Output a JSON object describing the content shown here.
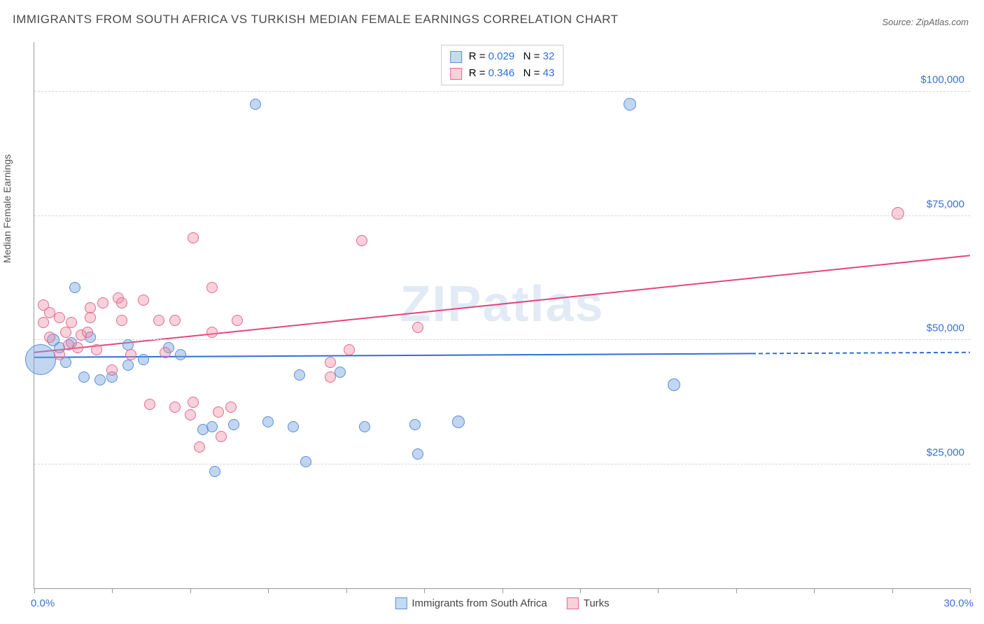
{
  "title": "IMMIGRANTS FROM SOUTH AFRICA VS TURKISH MEDIAN FEMALE EARNINGS CORRELATION CHART",
  "source": "Source: ZipAtlas.com",
  "watermark": "ZIPatlas",
  "y_axis_label": "Median Female Earnings",
  "x_min_label": "0.0%",
  "x_max_label": "30.0%",
  "chart": {
    "type": "scatter",
    "xlim": [
      0,
      30
    ],
    "ylim": [
      0,
      110000
    ],
    "y_gridlines": [
      25000,
      50000,
      75000,
      100000
    ],
    "y_tick_labels": [
      "$25,000",
      "$50,000",
      "$75,000",
      "$100,000"
    ],
    "y_tick_color": "#3b6fd6",
    "x_tick_color": "#3b6fd6",
    "x_ticks": [
      0,
      2.5,
      5,
      7.5,
      10,
      12.5,
      15,
      17.5,
      20,
      22.5,
      25,
      27.5,
      30
    ],
    "grid_color": "#d8d8d8",
    "background_color": "#ffffff",
    "series": [
      {
        "name": "Immigrants from South Africa",
        "fill": "rgba(120,165,225,0.45)",
        "stroke": "#5a8fd6",
        "r_value": "0.029",
        "n_value": "32",
        "trend": {
          "y_start": 46500,
          "y_end": 47500,
          "extrapolate_from": 23,
          "color": "#2f6fd6",
          "width": 2
        },
        "points": [
          {
            "x": 0.2,
            "y": 46000,
            "r": 22
          },
          {
            "x": 0.6,
            "y": 50000,
            "r": 9
          },
          {
            "x": 0.8,
            "y": 48500,
            "r": 8
          },
          {
            "x": 1.0,
            "y": 45500,
            "r": 8
          },
          {
            "x": 1.2,
            "y": 49500,
            "r": 8
          },
          {
            "x": 1.3,
            "y": 60500,
            "r": 8
          },
          {
            "x": 1.6,
            "y": 42500,
            "r": 8
          },
          {
            "x": 1.8,
            "y": 50500,
            "r": 8
          },
          {
            "x": 2.1,
            "y": 42000,
            "r": 8
          },
          {
            "x": 2.5,
            "y": 42500,
            "r": 8
          },
          {
            "x": 3.0,
            "y": 49000,
            "r": 8
          },
          {
            "x": 3.0,
            "y": 45000,
            "r": 8
          },
          {
            "x": 3.5,
            "y": 46000,
            "r": 8
          },
          {
            "x": 4.3,
            "y": 48500,
            "r": 8
          },
          {
            "x": 4.7,
            "y": 47000,
            "r": 8
          },
          {
            "x": 5.4,
            "y": 32000,
            "r": 8
          },
          {
            "x": 5.7,
            "y": 32500,
            "r": 8
          },
          {
            "x": 5.8,
            "y": 23500,
            "r": 8
          },
          {
            "x": 6.4,
            "y": 33000,
            "r": 8
          },
          {
            "x": 7.1,
            "y": 97500,
            "r": 8
          },
          {
            "x": 7.5,
            "y": 33500,
            "r": 8
          },
          {
            "x": 8.3,
            "y": 32500,
            "r": 8
          },
          {
            "x": 8.5,
            "y": 43000,
            "r": 8
          },
          {
            "x": 8.7,
            "y": 25500,
            "r": 8
          },
          {
            "x": 9.8,
            "y": 43500,
            "r": 8
          },
          {
            "x": 10.6,
            "y": 32500,
            "r": 8
          },
          {
            "x": 12.2,
            "y": 33000,
            "r": 8
          },
          {
            "x": 12.3,
            "y": 27000,
            "r": 8
          },
          {
            "x": 13.6,
            "y": 33500,
            "r": 9
          },
          {
            "x": 19.1,
            "y": 97500,
            "r": 9
          },
          {
            "x": 20.5,
            "y": 41000,
            "r": 9
          }
        ]
      },
      {
        "name": "Turks",
        "fill": "rgba(240,140,165,0.40)",
        "stroke": "#e06b8f",
        "r_value": "0.346",
        "n_value": "43",
        "trend": {
          "y_start": 47500,
          "y_end": 67000,
          "color": "#e5457c",
          "width": 2
        },
        "points": [
          {
            "x": 0.3,
            "y": 57000,
            "r": 8
          },
          {
            "x": 0.3,
            "y": 53500,
            "r": 8
          },
          {
            "x": 0.5,
            "y": 50500,
            "r": 8
          },
          {
            "x": 0.5,
            "y": 55500,
            "r": 8
          },
          {
            "x": 0.8,
            "y": 54500,
            "r": 8
          },
          {
            "x": 0.8,
            "y": 47000,
            "r": 8
          },
          {
            "x": 1.0,
            "y": 51500,
            "r": 8
          },
          {
            "x": 1.1,
            "y": 49000,
            "r": 8
          },
          {
            "x": 1.2,
            "y": 53500,
            "r": 8
          },
          {
            "x": 1.4,
            "y": 48500,
            "r": 8
          },
          {
            "x": 1.5,
            "y": 51000,
            "r": 8
          },
          {
            "x": 1.7,
            "y": 51500,
            "r": 8
          },
          {
            "x": 1.8,
            "y": 56500,
            "r": 8
          },
          {
            "x": 1.8,
            "y": 54500,
            "r": 8
          },
          {
            "x": 2.0,
            "y": 48000,
            "r": 8
          },
          {
            "x": 2.2,
            "y": 57500,
            "r": 8
          },
          {
            "x": 2.5,
            "y": 44000,
            "r": 8
          },
          {
            "x": 2.7,
            "y": 58500,
            "r": 8
          },
          {
            "x": 2.8,
            "y": 54000,
            "r": 8
          },
          {
            "x": 2.8,
            "y": 57500,
            "r": 8
          },
          {
            "x": 3.1,
            "y": 47000,
            "r": 8
          },
          {
            "x": 3.5,
            "y": 58000,
            "r": 8
          },
          {
            "x": 3.7,
            "y": 37000,
            "r": 8
          },
          {
            "x": 4.0,
            "y": 54000,
            "r": 8
          },
          {
            "x": 4.2,
            "y": 47500,
            "r": 8
          },
          {
            "x": 4.5,
            "y": 54000,
            "r": 8
          },
          {
            "x": 4.5,
            "y": 36500,
            "r": 8
          },
          {
            "x": 5.0,
            "y": 35000,
            "r": 8
          },
          {
            "x": 5.1,
            "y": 37500,
            "r": 8
          },
          {
            "x": 5.1,
            "y": 70500,
            "r": 8
          },
          {
            "x": 5.3,
            "y": 28500,
            "r": 8
          },
          {
            "x": 5.7,
            "y": 60500,
            "r": 8
          },
          {
            "x": 5.7,
            "y": 51500,
            "r": 8
          },
          {
            "x": 5.9,
            "y": 35500,
            "r": 8
          },
          {
            "x": 6.0,
            "y": 30500,
            "r": 8
          },
          {
            "x": 6.3,
            "y": 36500,
            "r": 8
          },
          {
            "x": 6.5,
            "y": 54000,
            "r": 8
          },
          {
            "x": 9.5,
            "y": 45500,
            "r": 8
          },
          {
            "x": 9.5,
            "y": 42500,
            "r": 8
          },
          {
            "x": 10.1,
            "y": 48000,
            "r": 8
          },
          {
            "x": 10.5,
            "y": 70000,
            "r": 8
          },
          {
            "x": 12.3,
            "y": 52500,
            "r": 8
          },
          {
            "x": 27.7,
            "y": 75500,
            "r": 9
          }
        ]
      }
    ]
  },
  "colors": {
    "series1_swatch_fill": "rgba(150,190,235,0.55)",
    "series1_swatch_border": "#5a8fd6",
    "series2_swatch_fill": "rgba(245,170,190,0.55)",
    "series2_swatch_border": "#e06b8f",
    "stat_value_color": "#2f6fd6"
  }
}
